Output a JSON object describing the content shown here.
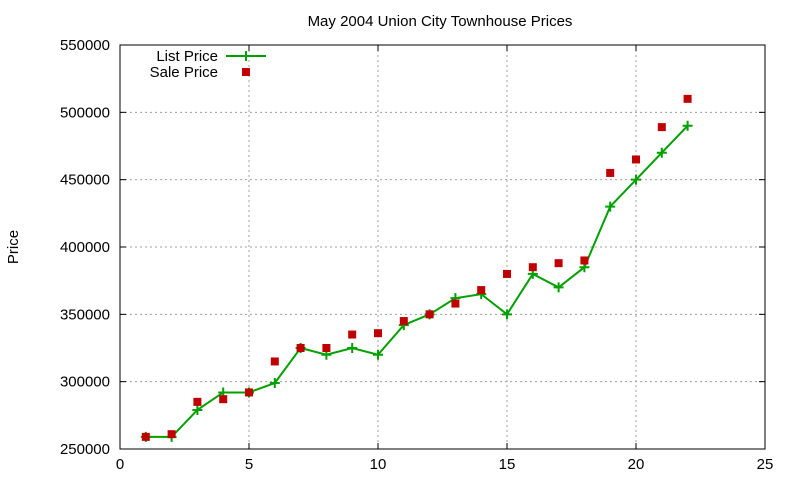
{
  "chart_data": {
    "type": "line",
    "title": "May 2004 Union City Townhouse Prices",
    "xlabel": "",
    "ylabel": "Price",
    "xlim": [
      0,
      25
    ],
    "ylim": [
      250000,
      550000
    ],
    "xticks": [
      0,
      5,
      10,
      15,
      20,
      25
    ],
    "yticks": [
      250000,
      300000,
      350000,
      400000,
      450000,
      500000,
      550000
    ],
    "grid": true,
    "legend_position": "top-left",
    "series": [
      {
        "name": "List Price",
        "style": "linespoints",
        "color": "#00a000",
        "marker": "plus",
        "points": [
          [
            1,
            259000
          ],
          [
            2,
            259000
          ],
          [
            3,
            279000
          ],
          [
            4,
            292000
          ],
          [
            5,
            292000
          ],
          [
            6,
            299000
          ],
          [
            7,
            325000
          ],
          [
            8,
            320000
          ],
          [
            9,
            325000
          ],
          [
            10,
            320000
          ],
          [
            11,
            342000
          ],
          [
            12,
            350000
          ],
          [
            13,
            362000
          ],
          [
            14,
            365000
          ],
          [
            15,
            350000
          ],
          [
            16,
            380000
          ],
          [
            17,
            370000
          ],
          [
            18,
            385000
          ],
          [
            19,
            430000
          ],
          [
            20,
            450000
          ],
          [
            21,
            470000
          ],
          [
            22,
            490000
          ]
        ]
      },
      {
        "name": "Sale Price",
        "style": "points",
        "color": "#c00000",
        "marker": "square",
        "points": [
          [
            1,
            259000
          ],
          [
            2,
            261000
          ],
          [
            3,
            285000
          ],
          [
            4,
            287000
          ],
          [
            5,
            292000
          ],
          [
            6,
            315000
          ],
          [
            7,
            325000
          ],
          [
            8,
            325000
          ],
          [
            9,
            335000
          ],
          [
            10,
            336000
          ],
          [
            11,
            345000
          ],
          [
            12,
            350000
          ],
          [
            13,
            358000
          ],
          [
            14,
            368000
          ],
          [
            15,
            380000
          ],
          [
            16,
            385000
          ],
          [
            17,
            388000
          ],
          [
            18,
            390000
          ],
          [
            19,
            455000
          ],
          [
            20,
            465000
          ],
          [
            21,
            489000
          ],
          [
            22,
            510000
          ]
        ]
      }
    ]
  }
}
